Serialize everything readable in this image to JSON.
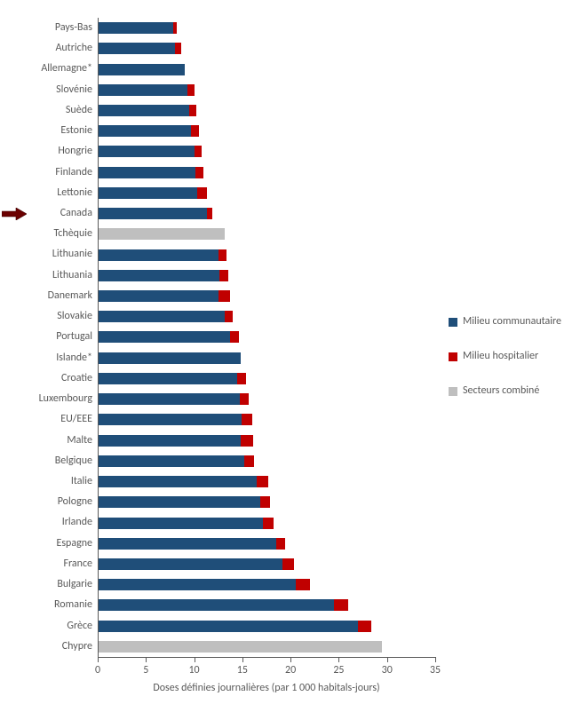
{
  "chart": {
    "type": "stacked-horizontal-bar",
    "background_color": "#ffffff",
    "axis_line_color": "#595959",
    "label_color": "#595959",
    "label_fontsize": 12,
    "xaxis": {
      "min": 0,
      "max": 35,
      "tick_step": 5,
      "ticks": [
        0,
        5,
        10,
        15,
        20,
        25,
        30,
        35
      ],
      "title": "Doses définies journalières  (par 1 000 habitals-jours)"
    },
    "series": [
      {
        "key": "community",
        "label": "Milieu communautaire",
        "color": "#1f4e79"
      },
      {
        "key": "hospital",
        "label": "Milieu hospitalier",
        "color": "#c00000"
      },
      {
        "key": "combined",
        "label": "Secteurs combiné",
        "color": "#bfbfbf"
      }
    ],
    "data": [
      {
        "label": "Pays-Bas",
        "values": {
          "community": 7.8,
          "hospital": 0.4,
          "combined": 0
        }
      },
      {
        "label": "Autriche",
        "values": {
          "community": 8.0,
          "hospital": 0.7,
          "combined": 0
        }
      },
      {
        "label": "Allemagne*",
        "values": {
          "community": 9.0,
          "hospital": 0.0,
          "combined": 0
        }
      },
      {
        "label": "Slovénie",
        "values": {
          "community": 9.3,
          "hospital": 0.7,
          "combined": 0
        }
      },
      {
        "label": "Suède",
        "values": {
          "community": 9.5,
          "hospital": 0.7,
          "combined": 0
        }
      },
      {
        "label": "Estonie",
        "values": {
          "community": 9.7,
          "hospital": 0.8,
          "combined": 0
        }
      },
      {
        "label": "Hongrie",
        "values": {
          "community": 10.0,
          "hospital": 0.8,
          "combined": 0
        }
      },
      {
        "label": "Finlande",
        "values": {
          "community": 10.1,
          "hospital": 0.9,
          "combined": 0
        }
      },
      {
        "label": "Lettonie",
        "values": {
          "community": 10.3,
          "hospital": 1.0,
          "combined": 0
        }
      },
      {
        "label": "Canada",
        "values": {
          "community": 11.3,
          "hospital": 0.6,
          "combined": 0
        },
        "arrow": true
      },
      {
        "label": "Tchèquie",
        "values": {
          "community": 0,
          "hospital": 0,
          "combined": 13.2
        }
      },
      {
        "label": "Lithuanie",
        "values": {
          "community": 12.5,
          "hospital": 0.9,
          "combined": 0
        }
      },
      {
        "label": "Lithuania",
        "values": {
          "community": 12.6,
          "hospital": 0.9,
          "combined": 0
        }
      },
      {
        "label": "Danemark",
        "values": {
          "community": 12.5,
          "hospital": 1.2,
          "combined": 0
        }
      },
      {
        "label": "Slovakie",
        "values": {
          "community": 13.2,
          "hospital": 0.8,
          "combined": 0
        }
      },
      {
        "label": "Portugal",
        "values": {
          "community": 13.7,
          "hospital": 0.9,
          "combined": 0
        }
      },
      {
        "label": "Islande*",
        "values": {
          "community": 14.8,
          "hospital": 0.0,
          "combined": 0
        }
      },
      {
        "label": "Croatie",
        "values": {
          "community": 14.5,
          "hospital": 0.9,
          "combined": 0
        }
      },
      {
        "label": "Luxembourg",
        "values": {
          "community": 14.7,
          "hospital": 1.0,
          "combined": 0
        }
      },
      {
        "label": "EU/EEE",
        "values": {
          "community": 14.9,
          "hospital": 1.1,
          "combined": 0
        }
      },
      {
        "label": "Malte",
        "values": {
          "community": 14.8,
          "hospital": 1.3,
          "combined": 0
        }
      },
      {
        "label": "Belgique",
        "values": {
          "community": 15.2,
          "hospital": 1.0,
          "combined": 0
        }
      },
      {
        "label": "Italie",
        "values": {
          "community": 16.5,
          "hospital": 1.2,
          "combined": 0
        }
      },
      {
        "label": "Pologne",
        "values": {
          "community": 16.9,
          "hospital": 1.0,
          "combined": 0
        }
      },
      {
        "label": "Irlande",
        "values": {
          "community": 17.1,
          "hospital": 1.1,
          "combined": 0
        }
      },
      {
        "label": "Espagne",
        "values": {
          "community": 18.5,
          "hospital": 0.9,
          "combined": 0
        }
      },
      {
        "label": "France",
        "values": {
          "community": 19.2,
          "hospital": 1.2,
          "combined": 0
        }
      },
      {
        "label": "Bulgarie",
        "values": {
          "community": 20.5,
          "hospital": 1.5,
          "combined": 0
        }
      },
      {
        "label": "Romanie",
        "values": {
          "community": 24.5,
          "hospital": 1.5,
          "combined": 0
        }
      },
      {
        "label": "Grèce",
        "values": {
          "community": 27.0,
          "hospital": 1.4,
          "combined": 0
        }
      },
      {
        "label": "Chypre",
        "values": {
          "community": 0,
          "hospital": 0,
          "combined": 29.5
        }
      }
    ],
    "arrow_color": "#6b0000"
  }
}
